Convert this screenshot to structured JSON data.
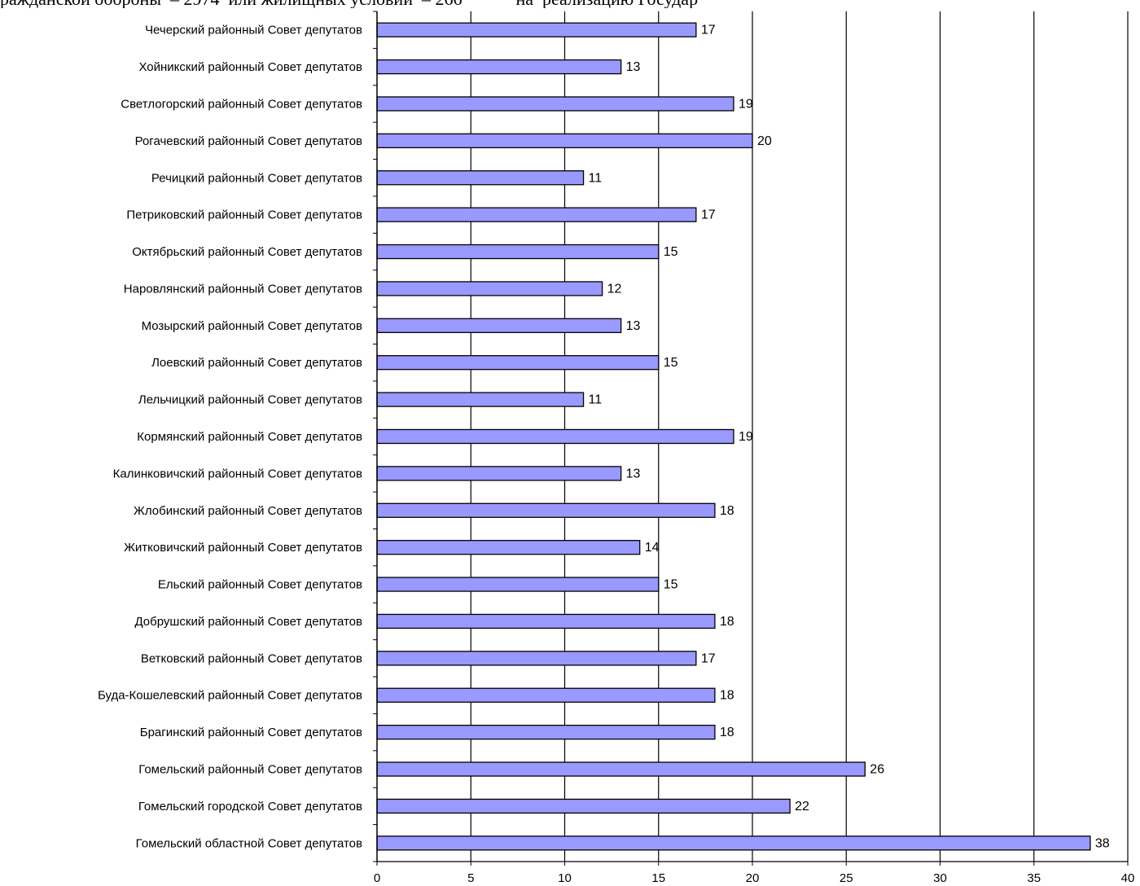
{
  "page": {
    "header_text": "раждaнской обороны  – 2974  или жилищных условий  – 266            на  реализацию Государ"
  },
  "colors": {
    "bar_fill": "#9999ff",
    "bar_stroke": "#000000",
    "grid": "#000000"
  },
  "chart_data": {
    "type": "bar",
    "orientation": "horizontal",
    "title": "",
    "xlabel": "",
    "ylabel": "",
    "xlim": [
      0,
      40
    ],
    "xticks": [
      0,
      5,
      10,
      15,
      20,
      25,
      30,
      35,
      40
    ],
    "grid": "vertical",
    "categories": [
      "Чечерский районный Совет депутатов",
      "Хойникский районный Совет депутатов",
      "Светлогорский районный Совет депутатов",
      "Рогачевский районный Совет депутатов",
      "Речицкий районный Совет депутатов",
      "Петриковский районный Совет депутатов",
      "Октябрьский районный Совет депутатов",
      "Наровлянский районный Совет депутатов",
      "Мозырский районный Совет депутатов",
      "Лоевский районный Совет депутатов",
      "Лельчицкий районный Совет депутатов",
      "Кормянский районный Совет депутатов",
      "Калинковичский районный Совет депутатов",
      "Жлобинский районный Совет депутатов",
      "Житковичский районный Совет депутатов",
      "Ельский районный Совет депутатов",
      "Добрушский районный Совет депутатов",
      "Ветковский районный Совет депутатов",
      "Буда-Кошелевский районный Совет депутатов",
      "Брагинский районный Совет депутатов",
      "Гомельский районный Совет депутатов",
      "Гомельский городской Совет депутатов",
      "Гомельский областной Совет депутатов"
    ],
    "values": [
      17,
      13,
      19,
      20,
      11,
      17,
      15,
      12,
      13,
      15,
      11,
      19,
      13,
      18,
      14,
      15,
      18,
      17,
      18,
      18,
      26,
      22,
      38
    ]
  }
}
